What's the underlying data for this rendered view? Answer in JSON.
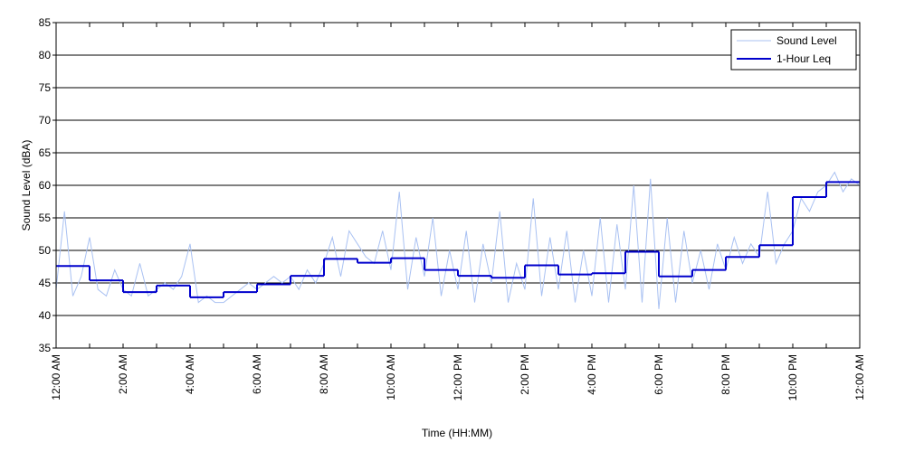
{
  "chart_data": {
    "type": "line",
    "xlabel": "Time (HH:MM)",
    "ylabel": "Sound Level (dBA)",
    "xlim": [
      0,
      24
    ],
    "ylim": [
      35,
      85
    ],
    "xticks": [
      {
        "value": 0,
        "label": "12:00 AM"
      },
      {
        "value": 2,
        "label": "2:00 AM"
      },
      {
        "value": 4,
        "label": "4:00 AM"
      },
      {
        "value": 6,
        "label": "6:00 AM"
      },
      {
        "value": 8,
        "label": "8:00 AM"
      },
      {
        "value": 10,
        "label": "10:00 AM"
      },
      {
        "value": 12,
        "label": "12:00 PM"
      },
      {
        "value": 14,
        "label": "2:00 PM"
      },
      {
        "value": 16,
        "label": "4:00 PM"
      },
      {
        "value": 18,
        "label": "6:00 PM"
      },
      {
        "value": 20,
        "label": "8:00 PM"
      },
      {
        "value": 22,
        "label": "10:00 PM"
      },
      {
        "value": 24,
        "label": "12:00 AM"
      }
    ],
    "xminor_ticks": [
      1,
      3,
      5,
      7,
      9,
      11,
      13,
      15,
      17,
      19,
      21,
      23
    ],
    "yticks": [
      35,
      40,
      45,
      50,
      55,
      60,
      65,
      70,
      75,
      80,
      85
    ],
    "grid": true,
    "legend": "upper right",
    "series": [
      {
        "name": "Sound Level",
        "color": "#a9c1f2",
        "style": "line",
        "x": [
          0,
          0.25,
          0.5,
          0.75,
          1,
          1.25,
          1.5,
          1.75,
          2,
          2.25,
          2.5,
          2.75,
          3,
          3.25,
          3.5,
          3.75,
          4,
          4.25,
          4.5,
          4.75,
          5,
          5.25,
          5.5,
          5.75,
          6,
          6.25,
          6.5,
          6.75,
          7,
          7.25,
          7.5,
          7.75,
          8,
          8.25,
          8.5,
          8.75,
          9,
          9.25,
          9.5,
          9.75,
          10,
          10.25,
          10.5,
          10.75,
          11,
          11.25,
          11.5,
          11.75,
          12,
          12.25,
          12.5,
          12.75,
          13,
          13.25,
          13.5,
          13.75,
          14,
          14.25,
          14.5,
          14.75,
          15,
          15.25,
          15.5,
          15.75,
          16,
          16.25,
          16.5,
          16.75,
          17,
          17.25,
          17.5,
          17.75,
          18,
          18.25,
          18.5,
          18.75,
          19,
          19.25,
          19.5,
          19.75,
          20,
          20.25,
          20.5,
          20.75,
          21,
          21.25,
          21.5,
          21.75,
          22,
          22.25,
          22.5,
          22.75,
          23,
          23.25,
          23.5,
          23.75,
          24
        ],
        "values": [
          44,
          56,
          43,
          46,
          52,
          44,
          43,
          47,
          44,
          43,
          48,
          43,
          44,
          45,
          44,
          46,
          51,
          42,
          43,
          42,
          42,
          43,
          44,
          45,
          44,
          45,
          46,
          45,
          46,
          44,
          47,
          45,
          48,
          52,
          46,
          53,
          51,
          49,
          48,
          53,
          47,
          59,
          44,
          52,
          46,
          55,
          43,
          50,
          44,
          53,
          42,
          51,
          45,
          56,
          42,
          48,
          44,
          58,
          43,
          52,
          44,
          53,
          42,
          50,
          43,
          55,
          42,
          54,
          44,
          60,
          42,
          61,
          41,
          55,
          42,
          53,
          45,
          50,
          44,
          51,
          47,
          52,
          48,
          51,
          49,
          59,
          48,
          51,
          53,
          58,
          56,
          59,
          60,
          62,
          59,
          61,
          60
        ]
      },
      {
        "name": "1-Hour Leq",
        "color": "#0000cc",
        "style": "step",
        "x": [
          0,
          1,
          2,
          3,
          4,
          5,
          6,
          7,
          8,
          9,
          10,
          11,
          12,
          13,
          14,
          15,
          16,
          17,
          18,
          19,
          20,
          21,
          22,
          23
        ],
        "values": [
          47.6,
          45.4,
          43.6,
          44.6,
          42.8,
          43.6,
          44.8,
          46.1,
          48.7,
          48.1,
          48.8,
          47.0,
          46.1,
          45.8,
          47.7,
          46.3,
          46.5,
          49.8,
          46.0,
          47.0,
          49.0,
          50.8,
          58.2,
          60.5
        ]
      }
    ]
  }
}
